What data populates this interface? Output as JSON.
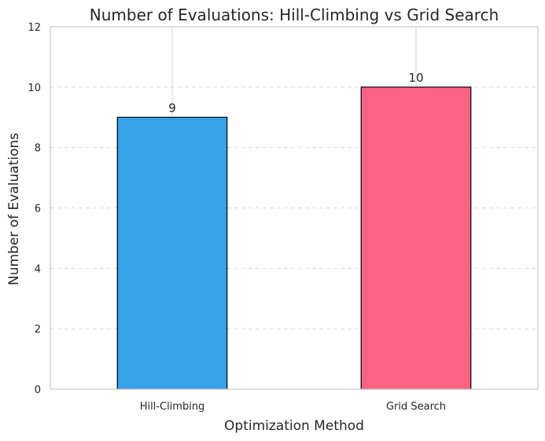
{
  "chart_data": {
    "type": "bar",
    "title": "Number of Evaluations: Hill-Climbing vs Grid Search",
    "xlabel": "Optimization Method",
    "ylabel": "Number of Evaluations",
    "categories": [
      "Hill-Climbing",
      "Grid Search"
    ],
    "values": [
      9,
      10
    ],
    "data_labels": [
      "9",
      "10"
    ],
    "ylim": [
      0,
      12
    ],
    "yticks": [
      "0",
      "2",
      "4",
      "6",
      "8",
      "10",
      "12"
    ],
    "bar_colors": [
      "#36a2eb",
      "#ff6384"
    ],
    "bar_edge_color": "#000000",
    "grid": {
      "y": true,
      "x": true,
      "y_style": "dashed"
    },
    "legend": "none"
  }
}
